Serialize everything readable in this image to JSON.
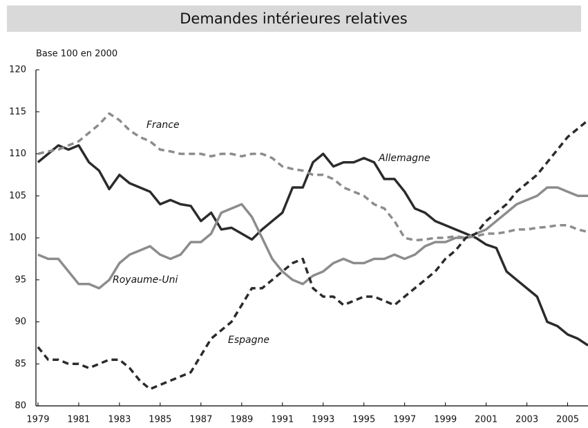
{
  "chart_data": {
    "type": "line",
    "title": "Demandes intérieures relatives",
    "y_label": "Base 100 en 2000",
    "x": [
      1979,
      1979.5,
      1980,
      1980.5,
      1981,
      1981.5,
      1982,
      1982.5,
      1983,
      1983.5,
      1984,
      1984.5,
      1985,
      1985.5,
      1986,
      1986.5,
      1987,
      1987.5,
      1988,
      1988.5,
      1989,
      1989.5,
      1990,
      1990.5,
      1991,
      1991.5,
      1992,
      1992.5,
      1993,
      1993.5,
      1994,
      1994.5,
      1995,
      1995.5,
      1996,
      1996.5,
      1997,
      1997.5,
      1998,
      1998.5,
      1999,
      1999.5,
      2000,
      2000.5,
      2001,
      2001.5,
      2002,
      2002.5,
      2003,
      2003.5,
      2004,
      2004.5,
      2005,
      2005.5,
      2006
    ],
    "series": [
      {
        "name": "Allemagne",
        "color": "#2b2b2b",
        "dashed": false,
        "values": [
          109,
          110,
          111,
          110.5,
          111,
          109,
          108,
          105.8,
          107.5,
          106.5,
          106,
          105.5,
          104,
          104.5,
          104,
          103.8,
          102,
          103,
          101,
          101.2,
          100.5,
          99.8,
          101,
          102,
          103,
          106,
          106,
          109,
          110,
          108.5,
          109,
          109,
          109.5,
          109,
          107,
          107,
          105.5,
          103.5,
          103,
          102,
          101.5,
          101,
          100.5,
          100,
          99.2,
          98.8,
          96,
          95,
          94,
          93,
          90,
          89.5,
          88.5,
          88,
          87.2
        ]
      },
      {
        "name": "France",
        "color": "#8c8c8c",
        "dashed": true,
        "values": [
          110,
          110.3,
          110.5,
          111,
          111.5,
          112.5,
          113.5,
          114.8,
          114,
          112.8,
          112,
          111.5,
          110.5,
          110.3,
          110,
          110,
          110,
          109.7,
          110,
          110,
          109.7,
          110,
          110,
          109.5,
          108.5,
          108.2,
          108,
          107.5,
          107.5,
          107,
          106,
          105.5,
          105,
          104,
          103.5,
          102,
          100,
          99.7,
          99.8,
          100,
          100,
          100.2,
          100,
          100.2,
          100.5,
          100.5,
          100.7,
          101,
          101,
          101.2,
          101.3,
          101.5,
          101.5,
          101,
          100.7
        ]
      },
      {
        "name": "Royaume-Uni",
        "color": "#8c8c8c",
        "dashed": false,
        "values": [
          98,
          97.5,
          97.5,
          96,
          94.5,
          94.5,
          94,
          95,
          97,
          98,
          98.5,
          99,
          98,
          97.5,
          98,
          99.5,
          99.5,
          100.5,
          103,
          103.5,
          104,
          102.5,
          100,
          97.5,
          96,
          95,
          94.5,
          95.5,
          96,
          97,
          97.5,
          97,
          97,
          97.5,
          97.5,
          98,
          97.5,
          98,
          99,
          99.5,
          99.5,
          100,
          100,
          100.5,
          101,
          102,
          103,
          104,
          104.5,
          105,
          106,
          106,
          105.5,
          105,
          105
        ]
      },
      {
        "name": "Espagne",
        "color": "#2b2b2b",
        "dashed": true,
        "values": [
          87,
          85.5,
          85.5,
          85,
          85,
          84.5,
          85,
          85.5,
          85.5,
          84.5,
          83,
          82,
          82.5,
          83,
          83.5,
          84,
          86,
          88,
          89,
          90,
          92,
          94,
          94,
          95,
          96,
          97,
          97.5,
          94,
          93,
          93,
          92,
          92.5,
          93,
          93,
          92.5,
          92,
          93,
          94,
          95,
          96,
          97.5,
          98.5,
          100,
          100.5,
          102,
          103,
          104,
          105.5,
          106.5,
          107.5,
          109,
          110.5,
          112,
          113,
          114
        ]
      }
    ],
    "xlim": [
      1978.9,
      2006
    ],
    "xticks": [
      1979,
      1981,
      1983,
      1985,
      1987,
      1989,
      1991,
      1993,
      1995,
      1997,
      1999,
      2001,
      2003,
      2005
    ],
    "ylim": [
      80,
      120
    ],
    "yticks": [
      80,
      85,
      90,
      95,
      100,
      105,
      110,
      115,
      120
    ],
    "grid": false
  }
}
